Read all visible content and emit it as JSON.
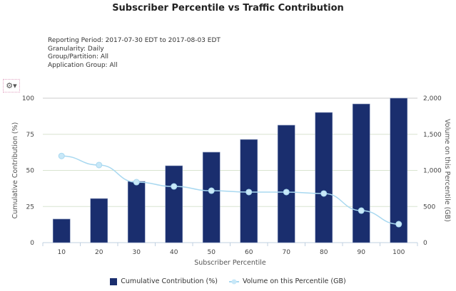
{
  "chart_data": {
    "type": "bar",
    "title": "Subscriber Percentile vs Traffic Contribution",
    "xlabel": "Subscriber Percentile",
    "ylabel": "Cumulative Contribution (%)",
    "y2label": "Volume on this Percentile (GB)",
    "categories": [
      "10",
      "20",
      "30",
      "40",
      "50",
      "60",
      "70",
      "80",
      "90",
      "100"
    ],
    "ylim": [
      0,
      100
    ],
    "y2lim": [
      0,
      2000
    ],
    "yticks": [
      "0",
      "25",
      "50",
      "75",
      "100"
    ],
    "y2ticks": [
      "0",
      "500",
      "1,000",
      "1,500",
      "2,000"
    ],
    "grid": true,
    "legend_placement": "bottom",
    "series": [
      {
        "name": "Cumulative Contribution (%)",
        "type": "bar",
        "axis": "left",
        "color": "#1a2e6e",
        "values": [
          16.3,
          30.5,
          42.4,
          53.2,
          62.6,
          71.4,
          81.3,
          90.1,
          96,
          100
        ]
      },
      {
        "name": "Volume on this Percentile (GB)",
        "type": "line",
        "axis": "right",
        "color": "#a8d8f0",
        "values": [
          1200,
          1074,
          837,
          778,
          719,
          700,
          700,
          680,
          443,
          256
        ]
      }
    ]
  },
  "meta": [
    "Reporting Period: 2017-07-30 EDT to 2017-08-03 EDT",
    "Granularity: Daily",
    "Group/Partition: All",
    "Application Group: All"
  ],
  "icons": {
    "settings": "gear-icon"
  }
}
